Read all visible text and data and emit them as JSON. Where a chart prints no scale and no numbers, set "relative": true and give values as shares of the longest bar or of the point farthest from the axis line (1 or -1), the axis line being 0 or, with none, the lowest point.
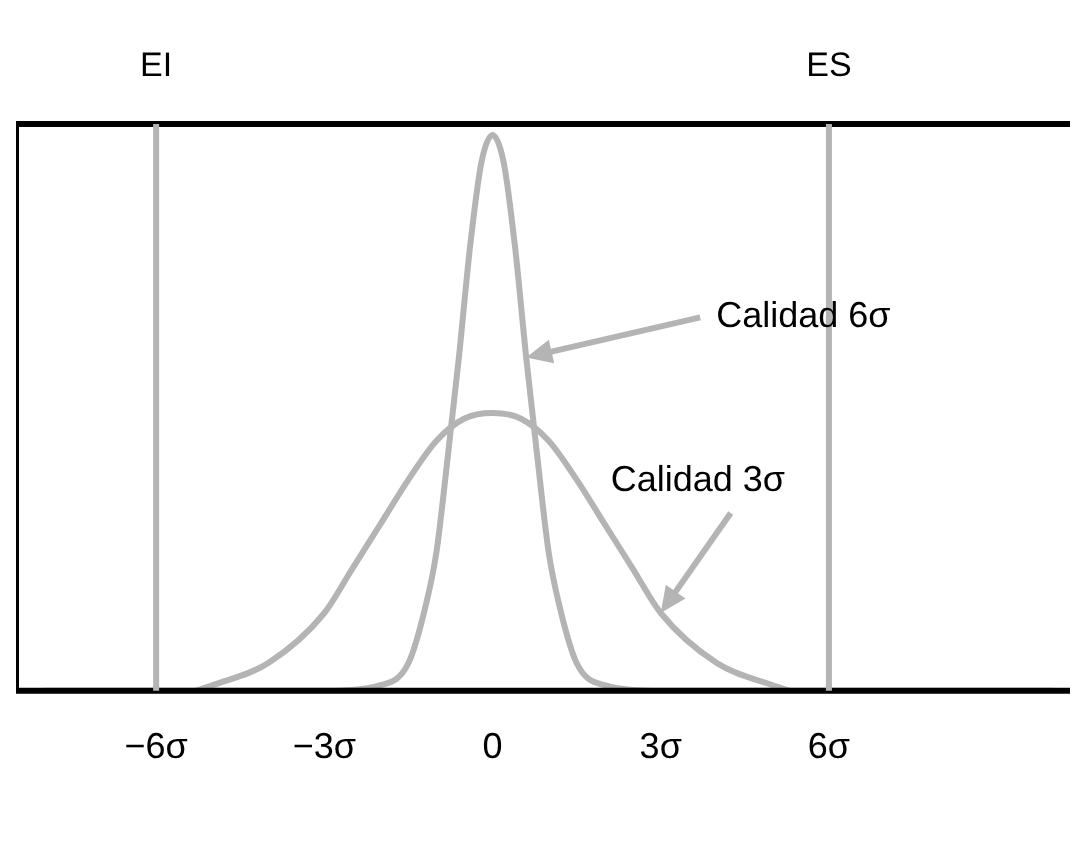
{
  "chart_data": {
    "type": "line",
    "relative": true,
    "tick_labels": "x",
    "grid": false,
    "legend": false,
    "marker": "none",
    "line_style": "solid",
    "xlim": [
      -8.5,
      10.3
    ],
    "xticks": [
      {
        "value": -6,
        "label": "−6σ"
      },
      {
        "value": -3,
        "label": "−3σ"
      },
      0,
      {
        "value": 3,
        "label": "3σ"
      },
      {
        "value": 6,
        "label": "6σ"
      }
    ],
    "series": [
      {
        "color": "#b4b4b4",
        "x": [
          -8,
          -6,
          -3,
          -2,
          -1.5,
          -1.2,
          -1,
          -0.8,
          -0.6,
          -0.4,
          -0.2,
          0,
          0.2,
          0.4,
          0.6,
          0.8,
          1,
          1.2,
          1.5,
          2,
          3,
          6,
          10
        ],
        "values": [
          0,
          0,
          0,
          0.01,
          0.05,
          0.15,
          0.25,
          0.42,
          0.6,
          0.8,
          0.95,
          1,
          0.95,
          0.8,
          0.6,
          0.42,
          0.25,
          0.15,
          0.05,
          0.01,
          0,
          0,
          0
        ]
      },
      {
        "color": "#b4b4b4",
        "x": [
          -5.3,
          -5,
          -4,
          -3,
          -2.5,
          -2,
          -1.5,
          -1,
          -0.5,
          0,
          0.5,
          1,
          1.5,
          2,
          2.5,
          3,
          4,
          5,
          5.3
        ],
        "values": [
          0,
          0.01,
          0.05,
          0.14,
          0.22,
          0.3,
          0.38,
          0.45,
          0.49,
          0.5,
          0.49,
          0.45,
          0.38,
          0.3,
          0.22,
          0.14,
          0.05,
          0.01,
          0
        ]
      }
    ],
    "ref_lines": [
      {
        "axis": "x",
        "value": -6,
        "label": "EI",
        "color": "#b4b4b4"
      },
      {
        "axis": "x",
        "value": 6,
        "label": "ES",
        "color": "#b4b4b4"
      }
    ],
    "annotations": [
      {
        "text": "Calidad 6σ",
        "x": 0.6,
        "y": 0.6
      },
      {
        "text": "Calidad 3σ",
        "x": 3,
        "y": 0.14
      }
    ]
  }
}
